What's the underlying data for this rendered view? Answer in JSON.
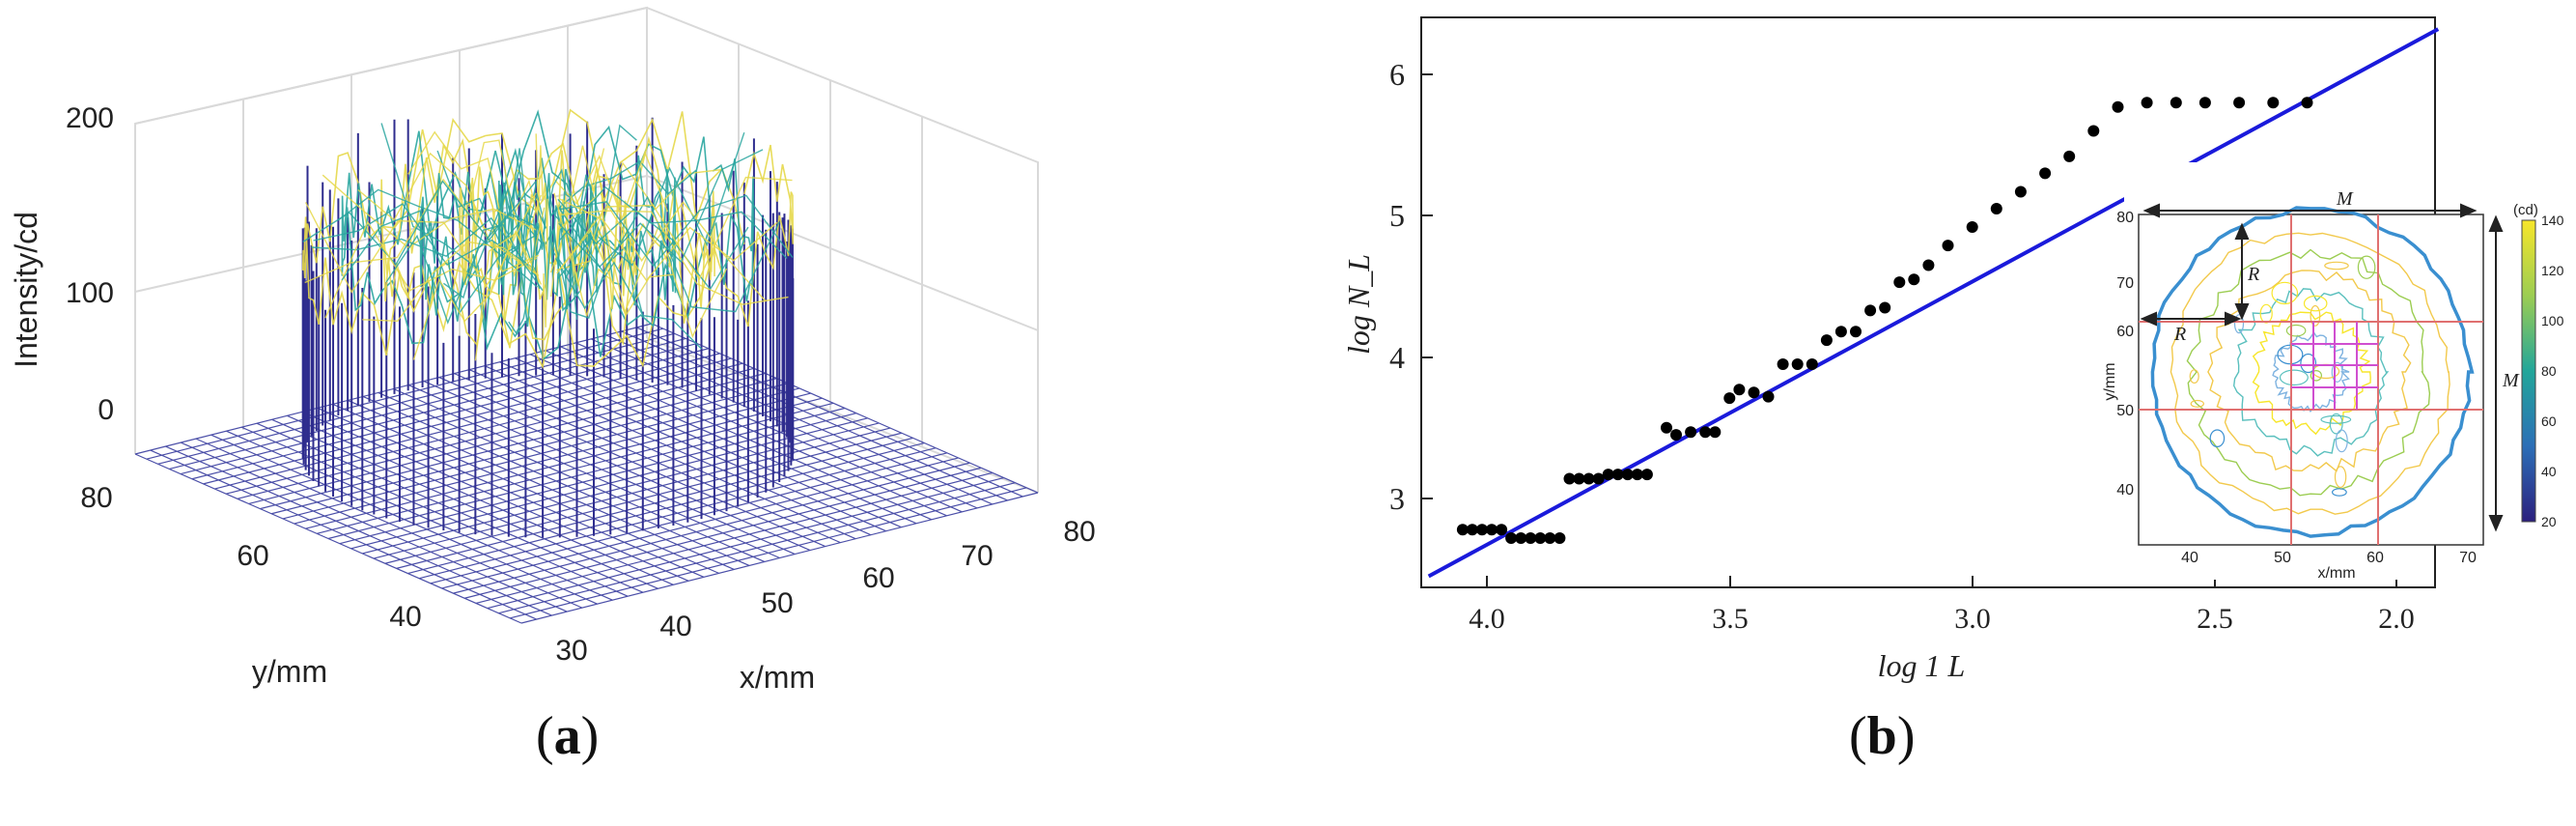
{
  "panels": {
    "a": {
      "caption_letter": "a"
    },
    "b": {
      "caption_letter": "b"
    }
  },
  "chart_data": [
    {
      "type": "surface",
      "panel": "a",
      "title": "",
      "zlabel": "Intensity/cd",
      "xlabel": "x/mm",
      "ylabel": "y/mm",
      "z_ticks": [
        0,
        100,
        200
      ],
      "x_ticks": [
        30,
        40,
        50,
        60,
        70,
        80
      ],
      "y_ticks": [
        40,
        60,
        80
      ],
      "zlim": [
        0,
        200
      ],
      "xlim": [
        30,
        80
      ],
      "ylim": [
        30,
        80
      ],
      "description_values": {
        "plateau_intensity_approx": 140,
        "disk_center": [
          55,
          60
        ],
        "disk_radius_mm": 19
      },
      "colors": {
        "base_mesh": "#4b4fa8",
        "low": "#2f2d8e",
        "mid": "#2aa6a0",
        "high": "#e6d84a"
      }
    },
    {
      "type": "scatter",
      "panel": "b",
      "title": "",
      "xlabel": "log 1 L",
      "ylabel": "log N_L",
      "x_ticks": [
        4.0,
        3.5,
        3.0,
        2.5,
        2.0
      ],
      "y_ticks": [
        3,
        4,
        5,
        6
      ],
      "x_tick_labels": [
        "4.0",
        "3.5",
        "3.0",
        "2.5",
        "2.0"
      ],
      "y_tick_labels": [
        "3",
        "4",
        "5",
        "6"
      ],
      "xlim": [
        4.18,
        1.95
      ],
      "ylim": [
        2.35,
        6.4
      ],
      "x_reversed": true,
      "series": [
        {
          "kind": "points",
          "color": "#000000",
          "x": [
            4.05,
            4.03,
            4.01,
            3.99,
            3.97,
            3.95,
            3.93,
            3.91,
            3.89,
            3.87,
            3.85,
            3.83,
            3.81,
            3.79,
            3.77,
            3.75,
            3.73,
            3.71,
            3.69,
            3.67,
            3.63,
            3.61,
            3.58,
            3.55,
            3.53,
            3.5,
            3.48,
            3.45,
            3.42,
            3.39,
            3.36,
            3.33,
            3.3,
            3.27,
            3.24,
            3.21,
            3.18,
            3.15,
            3.12,
            3.09,
            3.05,
            3.0,
            2.95,
            2.9,
            2.85,
            2.8,
            2.75,
            2.7,
            2.64,
            2.58,
            2.52,
            2.45,
            2.38,
            2.31
          ],
          "y": [
            2.78,
            2.78,
            2.78,
            2.78,
            2.78,
            2.72,
            2.72,
            2.72,
            2.72,
            2.72,
            2.72,
            3.14,
            3.14,
            3.14,
            3.14,
            3.17,
            3.17,
            3.17,
            3.17,
            3.17,
            3.5,
            3.45,
            3.47,
            3.47,
            3.47,
            3.71,
            3.77,
            3.75,
            3.72,
            3.95,
            3.95,
            3.95,
            4.12,
            4.18,
            4.18,
            4.33,
            4.35,
            4.53,
            4.55,
            4.65,
            4.79,
            4.92,
            5.05,
            5.17,
            5.3,
            5.42,
            5.6,
            5.77,
            5.8,
            5.8,
            5.8,
            5.8,
            5.8,
            5.8
          ]
        },
        {
          "kind": "fit-line",
          "color": "#1a1adb",
          "x": [
            4.12,
            2.04
          ],
          "y": [
            2.45,
            6.32
          ]
        }
      ],
      "inset": {
        "type": "contour",
        "xlabel": "x/mm",
        "ylabel": "y/mm",
        "x_ticks": [
          40,
          50,
          60,
          70
        ],
        "y_ticks": [
          40,
          50,
          60,
          70,
          80
        ],
        "colorbar_ticks": [
          20,
          40,
          60,
          80,
          100,
          120,
          140
        ],
        "colorbar_unit": "(cd)",
        "annotations": [
          "M",
          "M",
          "R",
          "R"
        ],
        "grid_lines_x": [
          47,
          63
        ],
        "grid_lines_y": [
          50,
          66
        ],
        "colors": {
          "boundary": "#3a8fd0",
          "grid": "#e07070",
          "fine_grid": "#d04fd0"
        }
      }
    }
  ]
}
